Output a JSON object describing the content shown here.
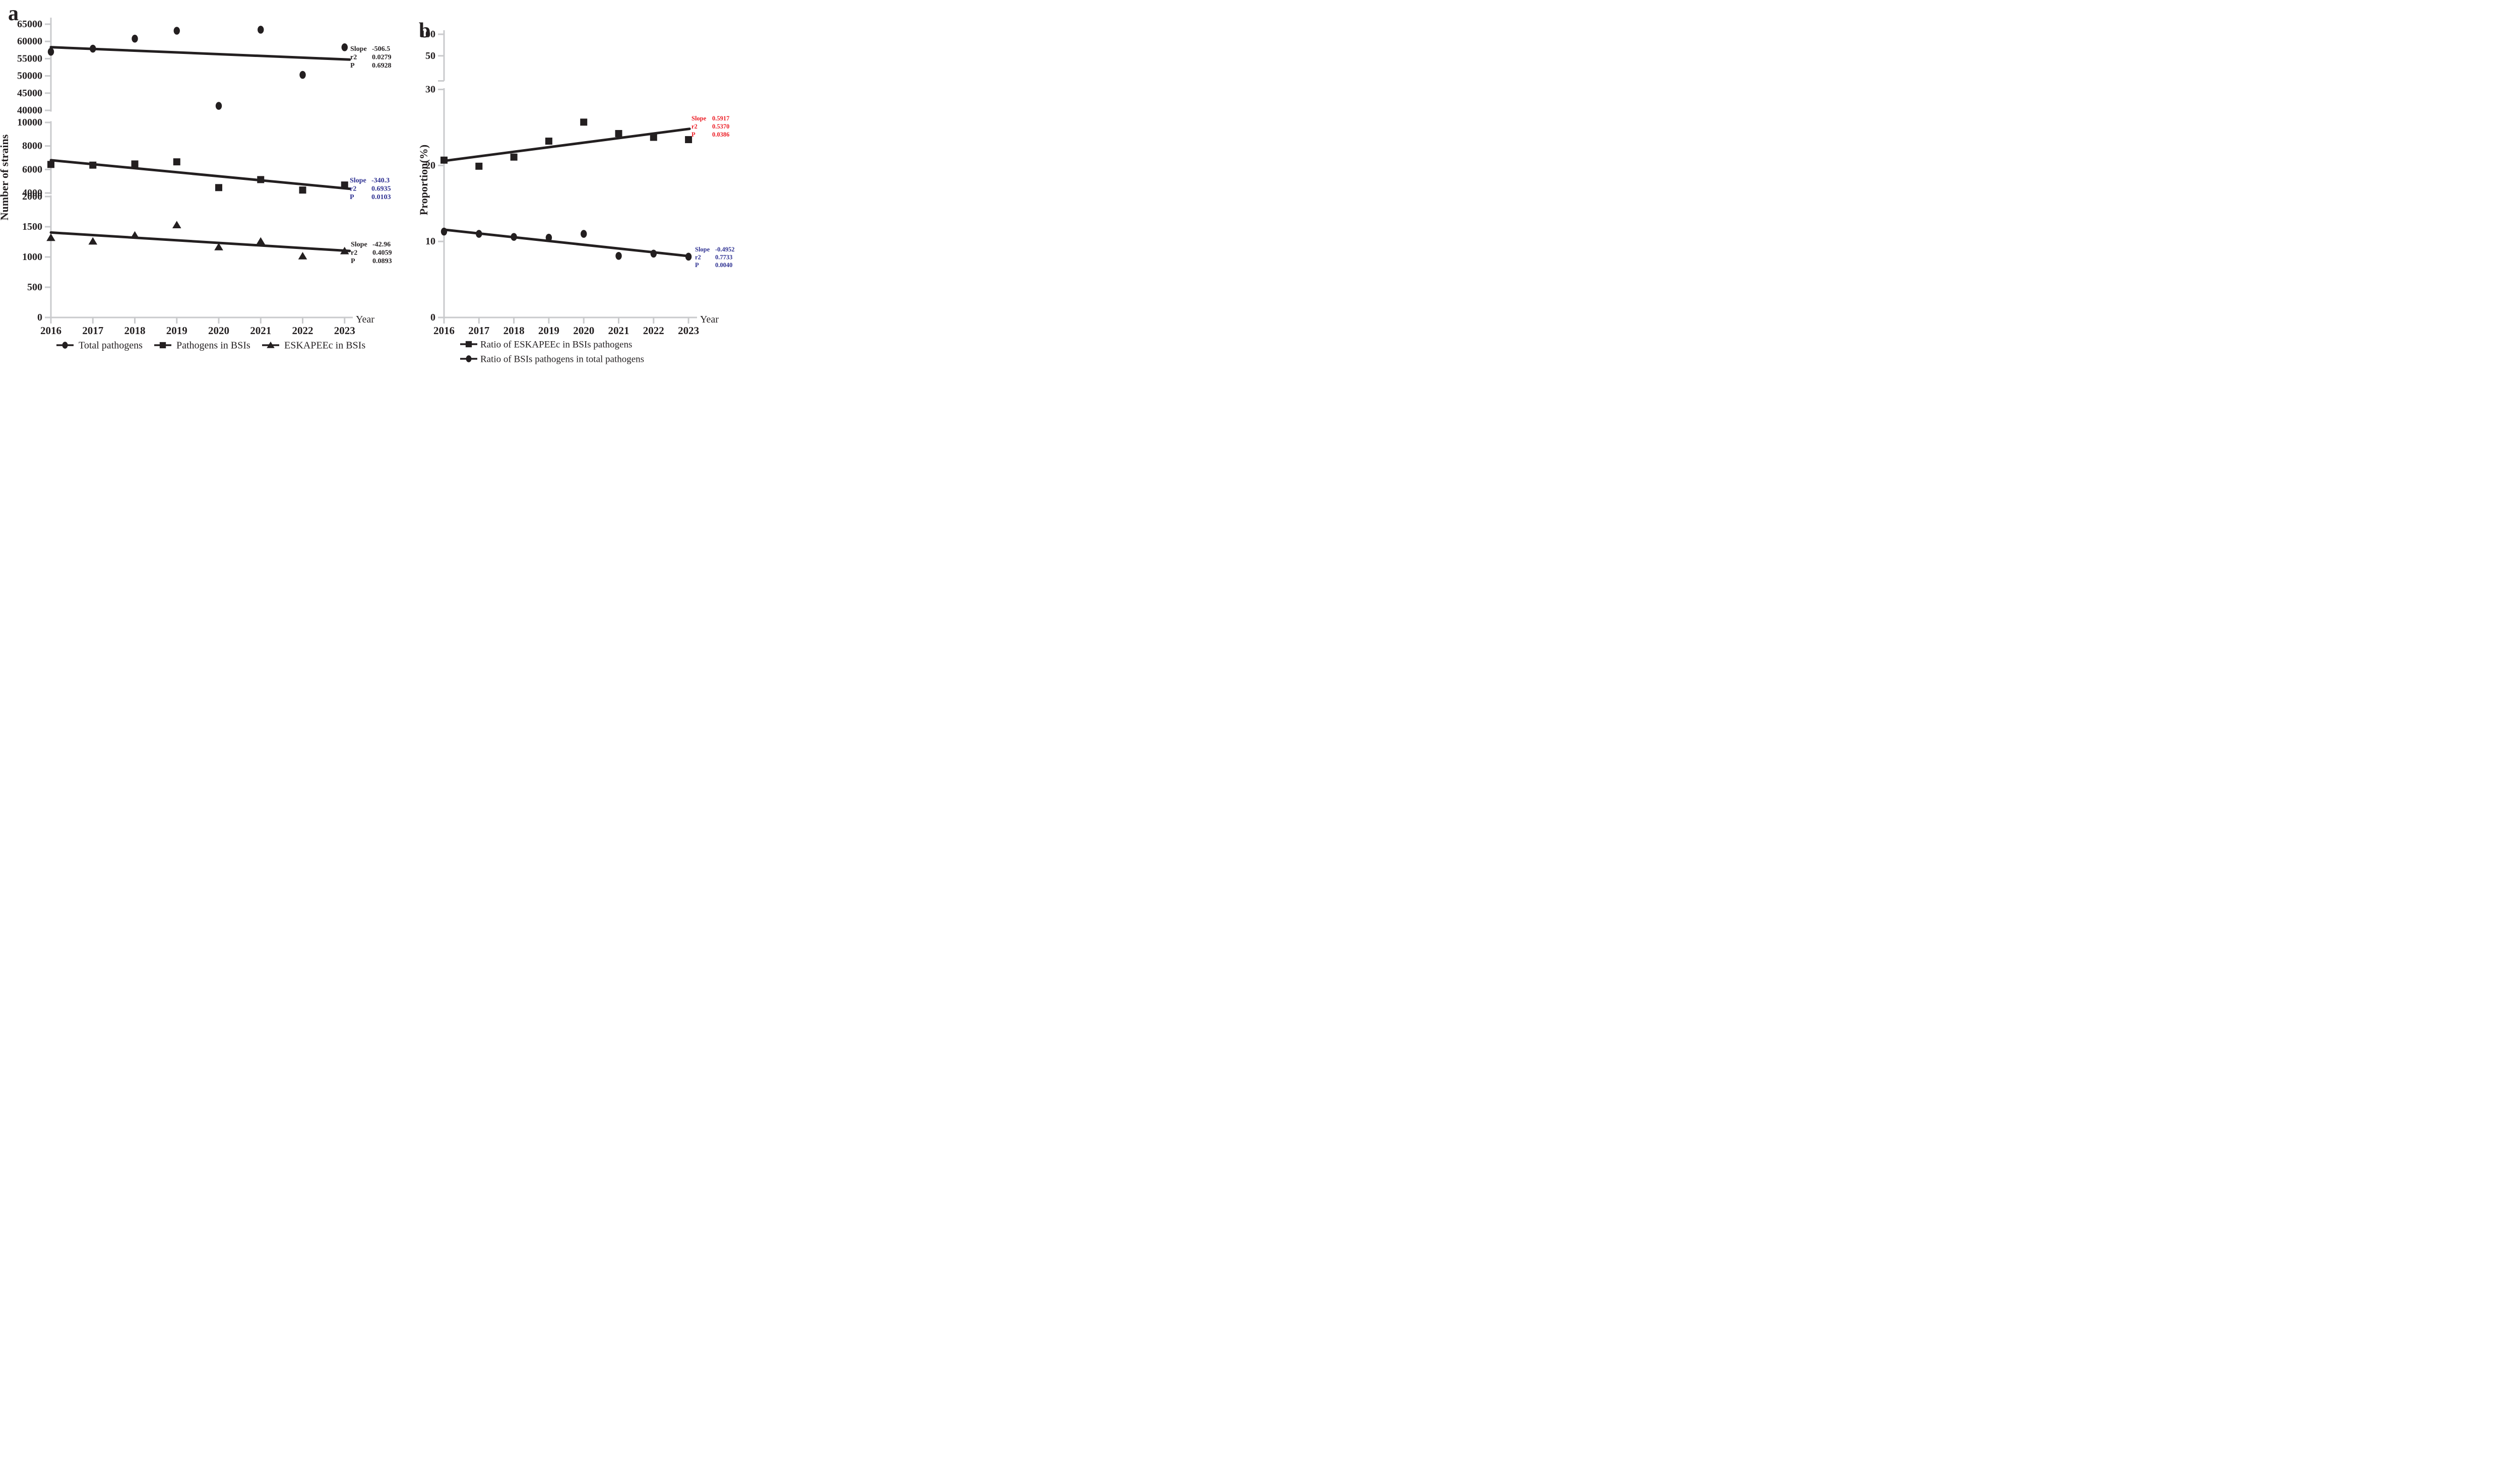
{
  "colors": {
    "black": "#231F20",
    "axis_gray": "#C9CACC",
    "blue": "#2E3192",
    "red": "#EC1C24",
    "background": "#FFFFFF"
  },
  "stat_labels": [
    "Slope",
    "r2",
    "P"
  ],
  "chart_data": [
    {
      "id": "a",
      "panel_label": "a",
      "type": "scatter",
      "xlabel": "Year",
      "ylabel": "Number of strains",
      "x_categories": [
        "2016",
        "2017",
        "2018",
        "2019",
        "2020",
        "2021",
        "2022",
        "2023"
      ],
      "y_axis_segments": [
        {
          "range": [
            0,
            2000
          ],
          "ticks": [
            0,
            500,
            1000,
            1500,
            2000
          ]
        },
        {
          "range": [
            4000,
            10000
          ],
          "ticks": [
            4000,
            6000,
            8000,
            10000
          ]
        },
        {
          "range": [
            40000,
            65000
          ],
          "ticks": [
            40000,
            45000,
            50000,
            55000,
            60000,
            65000
          ]
        }
      ],
      "series": [
        {
          "name": "Total pathogens",
          "marker": "circle",
          "values": [
            57000,
            57900,
            60800,
            63100,
            41300,
            63400,
            50300,
            58300
          ],
          "trend": [
            58330,
            54790
          ],
          "stats": {
            "slope": "-506.5",
            "r2": "0.0279",
            "p": "0.6928",
            "color": "#231F20"
          }
        },
        {
          "name": "Pathogens in BSIs",
          "marker": "square",
          "values": [
            6430,
            6370,
            6470,
            6650,
            4460,
            5140,
            4250,
            4680
          ],
          "trend": [
            6790,
            4400
          ],
          "stats": {
            "slope": "-340.3",
            "r2": "0.6935",
            "p": "0.0103",
            "color": "#2E3192"
          }
        },
        {
          "name": "ESKAPEEc in BSIs",
          "marker": "triangle",
          "values": [
            1320,
            1260,
            1360,
            1530,
            1165,
            1260,
            1015,
            1100
          ],
          "trend": [
            1405,
            1105
          ],
          "stats": {
            "slope": "-42.96",
            "r2": "0.4059",
            "p": "0.0893",
            "color": "#231F20"
          }
        }
      ],
      "legend_position": "bottom-row"
    },
    {
      "id": "b",
      "panel_label": "b",
      "type": "scatter",
      "xlabel": "Year",
      "ylabel": "Proportion(%)",
      "x_categories": [
        "2016",
        "2017",
        "2018",
        "2019",
        "2020",
        "2021",
        "2022",
        "2023"
      ],
      "y_axis_segments": [
        {
          "range": [
            0,
            30
          ],
          "ticks": [
            0,
            10,
            20,
            30
          ]
        },
        {
          "range": [
            50,
            100
          ],
          "ticks": [
            50,
            100
          ]
        }
      ],
      "series": [
        {
          "name": "Ratio of ESKAPEEc in BSIs pathogens",
          "marker": "square",
          "values": [
            20.7,
            19.9,
            21.1,
            23.2,
            25.7,
            24.2,
            23.7,
            23.4
          ],
          "trend": [
            20.6,
            24.8
          ],
          "stats": {
            "slope": "0.5917",
            "r2": "0.5370",
            "p": "0.0386",
            "color": "#EC1C24"
          }
        },
        {
          "name": "Ratio of BSIs pathogens in total pathogens",
          "marker": "circle",
          "values": [
            11.3,
            11.0,
            10.6,
            10.5,
            11.0,
            8.1,
            8.4,
            8.0
          ],
          "trend": [
            11.55,
            8.08
          ],
          "stats": {
            "slope": "-0.4952",
            "r2": "0.7733",
            "p": "0.0040",
            "color": "#2E3192"
          }
        }
      ],
      "legend_position": "bottom-column"
    }
  ]
}
